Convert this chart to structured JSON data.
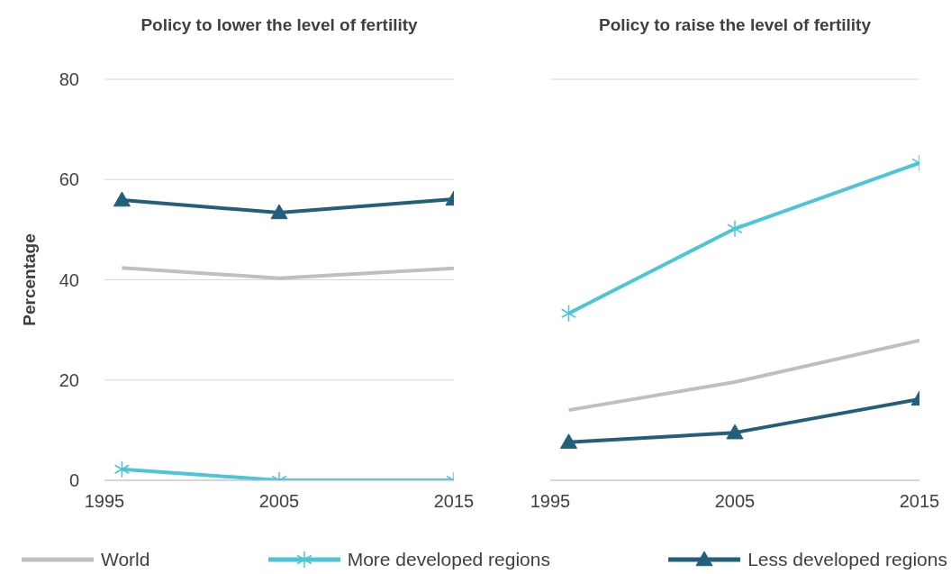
{
  "chart_data": [
    {
      "type": "line",
      "title": "Policy to lower the level of fertility",
      "ylabel": "Percentage",
      "x": [
        1996,
        2005,
        2015
      ],
      "xlim": [
        1995,
        2015
      ],
      "xticks": [
        1995,
        2005,
        2015
      ],
      "ylim": [
        0,
        80
      ],
      "yticks": [
        0,
        20,
        40,
        60,
        80
      ],
      "grid": "y",
      "legend": "bottom",
      "series": [
        {
          "name": "World",
          "color": "#bfbfbf",
          "marker": "none",
          "values": [
            42.4,
            40.3,
            42.3
          ]
        },
        {
          "name": "More developed regions",
          "color": "#4bc5d7",
          "marker": "cross",
          "values": [
            2.2,
            0,
            0
          ]
        },
        {
          "name": "Less developed regions",
          "color": "#235f7b",
          "marker": "triangle",
          "values": [
            55.9,
            53.4,
            56.1
          ]
        }
      ]
    },
    {
      "type": "line",
      "title": "Policy to raise the level of fertility",
      "x": [
        1996,
        2005,
        2015
      ],
      "xlim": [
        1995,
        2015
      ],
      "xticks": [
        1995,
        2005,
        2015
      ],
      "ylim": [
        0,
        80
      ],
      "yticks": [
        0,
        20,
        40,
        60,
        80
      ],
      "grid": "y",
      "tick_labels": "x",
      "legend": "bottom",
      "series": [
        {
          "name": "World",
          "color": "#bfbfbf",
          "marker": "none",
          "values": [
            14.0,
            19.6,
            27.9
          ]
        },
        {
          "name": "More developed regions",
          "color": "#4bc5d7",
          "marker": "cross",
          "values": [
            33.3,
            50.2,
            63.3
          ]
        },
        {
          "name": "Less developed regions",
          "color": "#235f7b",
          "marker": "triangle",
          "values": [
            7.6,
            9.5,
            16.2
          ]
        }
      ]
    }
  ]
}
